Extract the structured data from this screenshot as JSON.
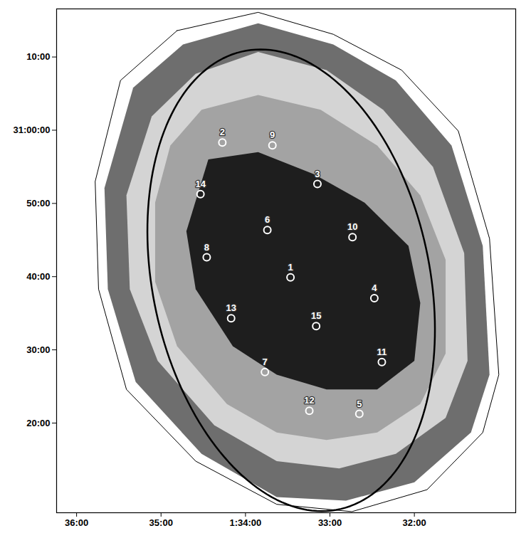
{
  "chart_data": {
    "type": "scatter",
    "x": [
      33.467,
      34.274,
      33.148,
      32.474,
      32.652,
      33.741,
      33.77,
      34.459,
      33.681,
      32.733,
      32.385,
      33.244,
      34.17,
      34.533,
      33.163
    ],
    "y": [
      39.9,
      58.33,
      52.65,
      37.06,
      21.27,
      46.37,
      26.96,
      42.65,
      57.94,
      45.39,
      28.33,
      21.67,
      34.31,
      51.27,
      33.24
    ],
    "labels": [
      "1",
      "2",
      "3",
      "4",
      "5",
      "6",
      "7",
      "8",
      "9",
      "10",
      "11",
      "12",
      "13",
      "14",
      "15"
    ],
    "marker": "circle",
    "color": "#ffffff",
    "xlim": [
      36.237,
      30.8
    ],
    "xticks": [
      {
        "value": 36,
        "label": "36:00"
      },
      {
        "value": 35,
        "label": "35:00"
      },
      {
        "value": 34,
        "label": "1:34:00"
      },
      {
        "value": 33,
        "label": "33:00"
      },
      {
        "value": 32,
        "label": "32:00"
      }
    ],
    "ylim": [
      7.75,
      76.57
    ],
    "yticks": [
      {
        "value": 20,
        "label": "20:00"
      },
      {
        "value": 30,
        "label": "30:00"
      },
      {
        "value": 40,
        "label": "40:00"
      },
      {
        "value": 50,
        "label": "50:00"
      },
      {
        "value": 60,
        "label": "31:00:00"
      },
      {
        "value": 70,
        "label": "10:00"
      }
    ],
    "ellipse": {
      "x": 33.459,
      "y": 39.5,
      "major": 64.3,
      "minor": 42.1,
      "position_angle": 15,
      "color": "#000000"
    },
    "exposure_map": [
      {
        "color": "#ffffff",
        "points": [
          [
            34.81,
            73.6
          ],
          [
            33.85,
            76.1
          ],
          [
            32.96,
            73.1
          ],
          [
            32.15,
            68.2
          ],
          [
            31.48,
            59.9
          ],
          [
            31.11,
            45.2
          ],
          [
            31.0,
            26.6
          ],
          [
            31.19,
            18.7
          ],
          [
            31.85,
            10.9
          ],
          [
            32.74,
            7.9
          ],
          [
            33.63,
            8.9
          ],
          [
            34.59,
            14.8
          ],
          [
            35.41,
            24.6
          ],
          [
            35.74,
            38.3
          ],
          [
            35.78,
            53.0
          ],
          [
            35.48,
            66.8
          ]
        ]
      },
      {
        "color": "#6e6e6e",
        "points": [
          [
            34.74,
            71.7
          ],
          [
            33.85,
            74.6
          ],
          [
            32.96,
            71.7
          ],
          [
            32.22,
            66.8
          ],
          [
            31.56,
            57.9
          ],
          [
            31.19,
            44.2
          ],
          [
            31.11,
            26.6
          ],
          [
            31.33,
            18.7
          ],
          [
            32.0,
            11.9
          ],
          [
            32.81,
            9.4
          ],
          [
            33.63,
            9.9
          ],
          [
            34.52,
            15.8
          ],
          [
            35.3,
            25.6
          ],
          [
            35.63,
            38.3
          ],
          [
            35.67,
            52.1
          ],
          [
            35.33,
            65.8
          ]
        ]
      },
      {
        "color": "#d4d4d4",
        "points": [
          [
            34.59,
            67.7
          ],
          [
            33.85,
            70.7
          ],
          [
            33.04,
            68.2
          ],
          [
            32.37,
            62.8
          ],
          [
            31.78,
            55.0
          ],
          [
            31.41,
            43.2
          ],
          [
            31.37,
            28.5
          ],
          [
            31.63,
            20.7
          ],
          [
            32.22,
            15.8
          ],
          [
            32.89,
            13.8
          ],
          [
            33.63,
            14.8
          ],
          [
            34.37,
            19.7
          ],
          [
            35.04,
            28.5
          ],
          [
            35.37,
            38.3
          ],
          [
            35.41,
            51.1
          ],
          [
            35.11,
            61.9
          ]
        ]
      },
      {
        "color": "#a3a3a3",
        "points": [
          [
            34.52,
            62.8
          ],
          [
            33.85,
            64.8
          ],
          [
            33.11,
            62.8
          ],
          [
            32.44,
            57.9
          ],
          [
            31.93,
            51.1
          ],
          [
            31.63,
            42.3
          ],
          [
            31.63,
            29.5
          ],
          [
            31.93,
            22.6
          ],
          [
            32.44,
            18.7
          ],
          [
            33.04,
            17.7
          ],
          [
            33.63,
            18.7
          ],
          [
            34.22,
            22.6
          ],
          [
            34.81,
            30.5
          ],
          [
            35.07,
            39.3
          ],
          [
            35.07,
            50.1
          ],
          [
            34.89,
            57.9
          ]
        ]
      },
      {
        "color": "#1e1e1e",
        "points": [
          [
            34.44,
            56.0
          ],
          [
            33.85,
            57.0
          ],
          [
            33.19,
            54.0
          ],
          [
            32.59,
            50.1
          ],
          [
            32.07,
            44.2
          ],
          [
            31.93,
            36.4
          ],
          [
            32.0,
            28.5
          ],
          [
            32.44,
            24.6
          ],
          [
            33.04,
            24.6
          ],
          [
            33.63,
            26.6
          ],
          [
            34.15,
            30.5
          ],
          [
            34.59,
            38.3
          ],
          [
            34.7,
            46.2
          ]
        ]
      }
    ]
  }
}
